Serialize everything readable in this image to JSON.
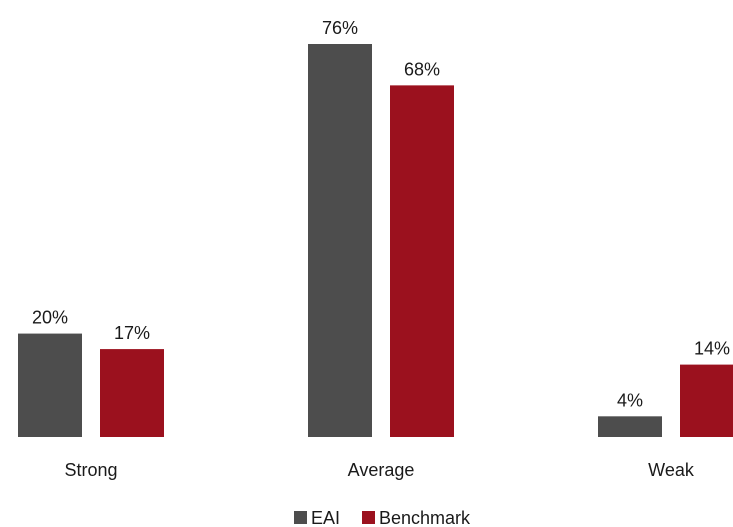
{
  "chart_data": {
    "type": "bar",
    "categories": [
      "Strong",
      "Average",
      "Weak"
    ],
    "series": [
      {
        "name": "EAI",
        "values": [
          20,
          76,
          4
        ],
        "color": "#4d4d4d",
        "labels": [
          "20%",
          "76%",
          "4%"
        ]
      },
      {
        "name": "Benchmark",
        "values": [
          17,
          68,
          14
        ],
        "color": "#9b111e",
        "labels": [
          "17%",
          "68%",
          "14%"
        ]
      }
    ],
    "ylim": [
      0,
      80
    ],
    "grid": false,
    "legend": "bottom-center",
    "title": "",
    "xlabel": "",
    "ylabel": ""
  }
}
